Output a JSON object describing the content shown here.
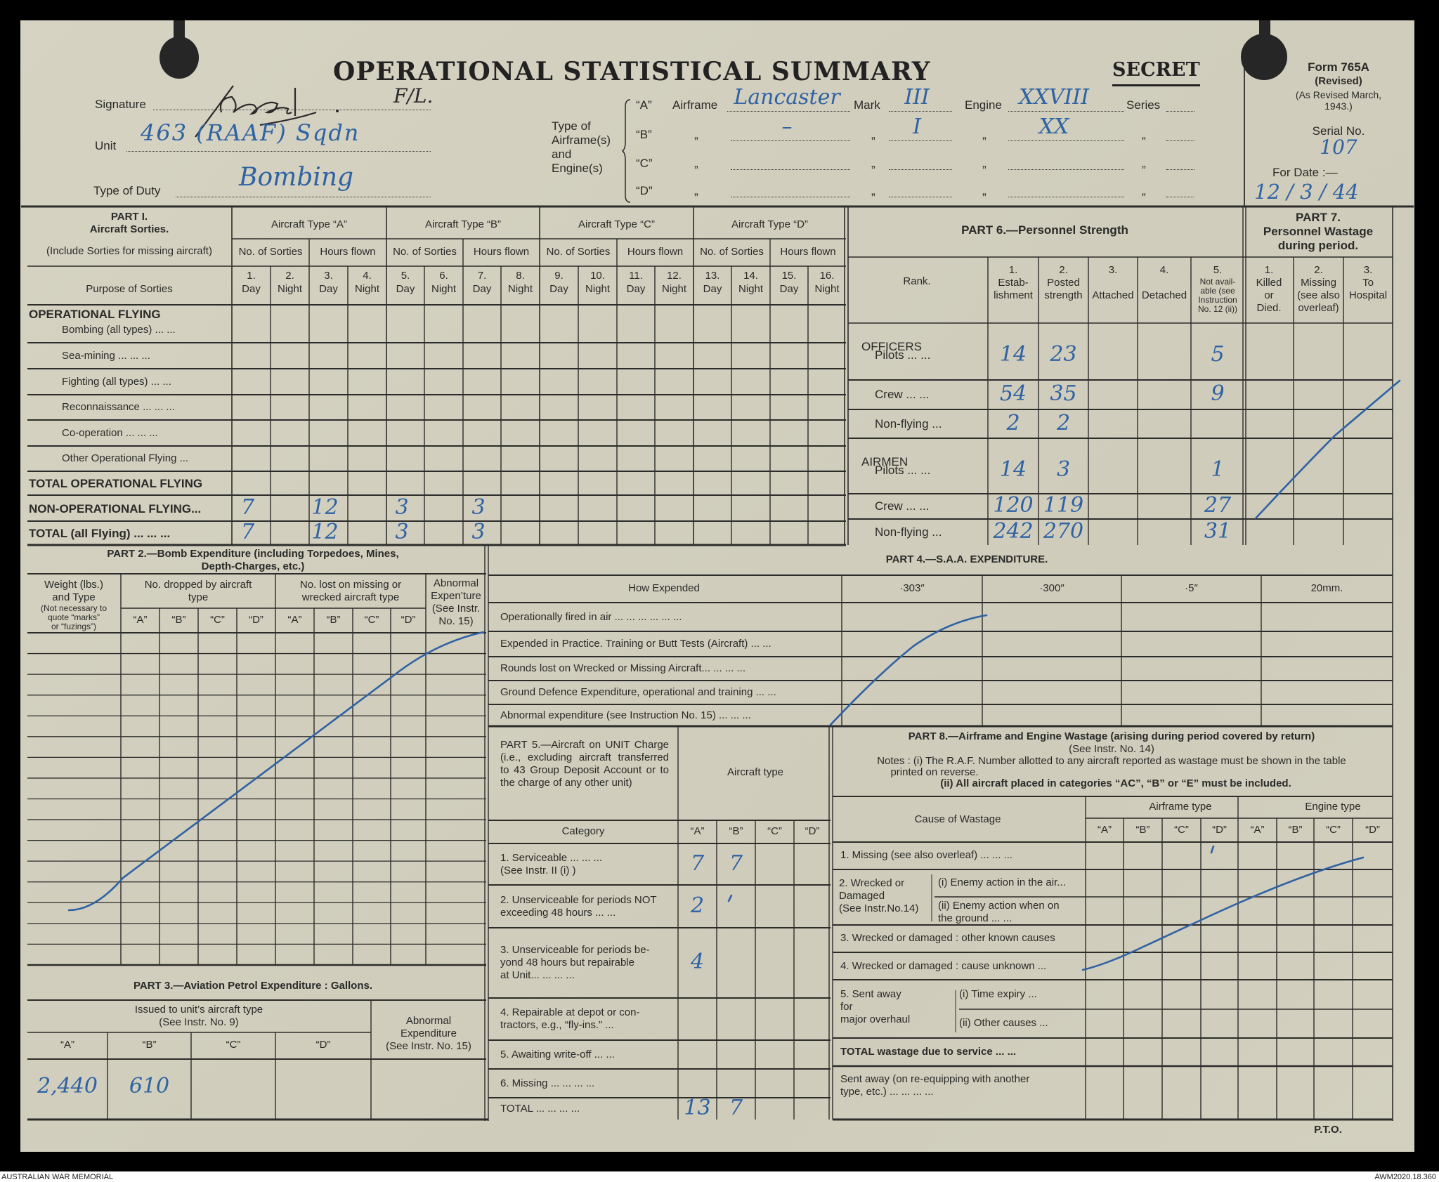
{
  "header": {
    "title": "OPERATIONAL STATISTICAL SUMMARY",
    "classification": "SECRET",
    "form_no": "Form 765A",
    "form_revised": "(Revised)",
    "form_revised_note": "(As Revised March,\n1943.)",
    "serial_label": "Serial No.",
    "serial_value": "107",
    "date_label": "For Date :—",
    "date_value": "12 / 3 / 44",
    "signature_label": "Signature",
    "signature_handwritten": "signature",
    "signature_rank": "F/L.",
    "unit_label": "Unit",
    "unit_value": "463 (RAAF) Sqdn",
    "duty_label": "Type of Duty",
    "duty_value": "Bombing",
    "type_label": "Type of\nAirframe(s)\nand\nEngine(s)",
    "ditto": "„",
    "airframe_label": "Airframe",
    "mark_label": "Mark",
    "engine_label": "Engine",
    "series_label": "Series",
    "airframe_rows": [
      {
        "letter": "“A”",
        "airframe": "Lancaster",
        "mark": "III",
        "engine": "XXVIII",
        "series": ""
      },
      {
        "letter": "“B”",
        "airframe": "–",
        "mark": "I",
        "engine": "XX",
        "series": ""
      },
      {
        "letter": "“C”",
        "airframe": "",
        "mark": "",
        "engine": "",
        "series": ""
      },
      {
        "letter": "“D”",
        "airframe": "",
        "mark": "",
        "engine": "",
        "series": ""
      }
    ]
  },
  "part1": {
    "title": "PART I.\nAircraft Sorties.",
    "note": "(Include Sorties for missing aircraft)",
    "purpose_header": "Purpose of Sorties",
    "groups": [
      "Aircraft Type “A”",
      "Aircraft Type “B”",
      "Aircraft Type “C”",
      "Aircraft Type “D”"
    ],
    "sub_headers": [
      "No. of Sorties",
      "Hours flown"
    ],
    "columns": [
      {
        "num": "1.",
        "label": "Day"
      },
      {
        "num": "2.",
        "label": "Night"
      },
      {
        "num": "3.",
        "label": "Day"
      },
      {
        "num": "4.",
        "label": "Night"
      },
      {
        "num": "5.",
        "label": "Day"
      },
      {
        "num": "6.",
        "label": "Night"
      },
      {
        "num": "7.",
        "label": "Day"
      },
      {
        "num": "8.",
        "label": "Night"
      },
      {
        "num": "9.",
        "label": "Day"
      },
      {
        "num": "10.",
        "label": "Night"
      },
      {
        "num": "11.",
        "label": "Day"
      },
      {
        "num": "12.",
        "label": "Night"
      },
      {
        "num": "13.",
        "label": "Day"
      },
      {
        "num": "14.",
        "label": "Night"
      },
      {
        "num": "15.",
        "label": "Day"
      },
      {
        "num": "16.",
        "label": "Night"
      }
    ],
    "rows": [
      {
        "heading": "OPERATIONAL FLYING",
        "label": "Bombing (all types)    ...    ...",
        "values": []
      },
      {
        "label": "Sea-mining    ...    ...    ...",
        "values": []
      },
      {
        "label": "Fighting (all types)    ...    ...",
        "values": []
      },
      {
        "label": "Reconnaissance ...    ...    ...",
        "values": []
      },
      {
        "label": "Co-operation    ...    ...    ...",
        "values": []
      },
      {
        "label": "Other Operational Flying    ...",
        "values": []
      },
      {
        "label": "TOTAL OPERATIONAL FLYING",
        "bold": true,
        "values": []
      },
      {
        "label": "NON-OPERATIONAL FLYING...",
        "bold": true,
        "values": [
          "7",
          "",
          "12",
          "",
          "3",
          "",
          "3",
          "",
          "",
          "",
          "",
          "",
          "",
          "",
          "",
          ""
        ]
      },
      {
        "label": "TOTAL (all Flying) ...    ...    ...",
        "bold": true,
        "values": [
          "7",
          "",
          "12",
          "",
          "3",
          "",
          "3",
          "",
          "",
          "",
          "",
          "",
          "",
          "",
          "",
          ""
        ]
      }
    ]
  },
  "part6": {
    "title": "PART 6.—Personnel Strength",
    "rank_header": "Rank.",
    "columns": [
      "1.\nEstab-\nlishment",
      "2.\nPosted\nstrength",
      "3.\n\nAttached",
      "4.\n\nDetached"
    ],
    "col5_num": "5.",
    "col5_label": "Not avail-\nable (see\nInstruction\nNo. 12 (ii))",
    "rows": [
      {
        "group": "OFFICERS",
        "label": "Pilots    ...    ...",
        "values": [
          "14",
          "23",
          "",
          "",
          "5"
        ]
      },
      {
        "label": "Crew    ...    ...",
        "values": [
          "54",
          "35",
          "",
          "",
          "9"
        ]
      },
      {
        "label": "Non-flying    ...",
        "values": [
          "2",
          "2",
          "",
          "",
          ""
        ]
      },
      {
        "group": "AIRMEN",
        "label": "Pilots    ...    ...",
        "values": [
          "14",
          "3",
          "",
          "",
          "1"
        ]
      },
      {
        "label": "Crew    ...    ...",
        "values": [
          "120",
          "119",
          "",
          "",
          "27"
        ]
      },
      {
        "label": "Non-flying    ...",
        "values": [
          "242",
          "270",
          "",
          "",
          "31"
        ]
      }
    ]
  },
  "part7": {
    "title": "PART 7.\nPersonnel Wastage\nduring period.",
    "columns": [
      "1.\nKilled\nor\nDied.",
      "2.\nMissing\n(see also\noverleaf)",
      "3.\nTo\nHospital"
    ]
  },
  "part2": {
    "title": "PART 2.—Bomb Expenditure (including Torpedoes, Mines,\nDepth-Charges, etc.)",
    "weight_header": "Weight (lbs.)\nand Type",
    "weight_note": "(Not necessary to\nquote “marks”\nor “fuzings”)",
    "dropped_header": "No. dropped by aircraft\ntype",
    "lost_header": "No. lost on missing or\nwrecked aircraft type",
    "abnormal_header": "Abnormal\nExpen’ture\n(See Instr.\nNo. 15)",
    "letters": [
      "“A”",
      "“B”",
      "“C”",
      "“D”"
    ]
  },
  "part3": {
    "title": "PART 3.—Aviation Petrol Expenditure : Gallons.",
    "issued_header": "Issued to unit’s aircraft type\n(See Instr. No. 9)",
    "letters": [
      "“A”",
      "“B”",
      "“C”",
      "“D”"
    ],
    "abnormal_header": "Abnormal\nExpenditure\n(See Instr. No. 15)",
    "values": [
      "2,440",
      "610",
      "",
      ""
    ]
  },
  "part4": {
    "title": "PART 4.—S.A.A. EXPENDITURE.",
    "how_header": "How Expended",
    "calibres": [
      "·303″",
      "·300″",
      "·5″",
      "20mm."
    ],
    "rows": [
      "Operationally fired in air    ...    ...    ...    ...    ...    ...",
      "Expended in Practice. Training or Butt Tests (Aircraft) ...    ...",
      "Rounds lost on Wrecked or Missing Aircraft...    ...    ...    ...",
      "Ground Defence Expenditure, operational and training    ...    ...",
      "Abnormal expenditure (see Instruction No. 15)    ...    ...    ..."
    ]
  },
  "part5": {
    "title": "PART 5.—Aircraft on UNIT Charge (i.e., excluding aircraft transferred to 43 Group Deposit Account or to the charge of any other unit)",
    "aircraft_type": "Aircraft type",
    "category_header": "Category",
    "letters": [
      "“A”",
      "“B”",
      "“C”",
      "“D”"
    ],
    "rows": [
      {
        "label": "1. Serviceable    ...    ...    ...\n      (See Instr. II (i) )",
        "values": [
          "7",
          "7",
          "",
          ""
        ]
      },
      {
        "label": "2. Unserviceable for periods NOT\n    exceeding 48 hours    ...    ...",
        "values": [
          "2",
          "",
          "",
          ""
        ]
      },
      {
        "label": "3. Unserviceable for periods be-\n    yond 48 hours but repairable\n    at Unit...    ...    ...    ...",
        "values": [
          "4",
          "",
          "",
          ""
        ]
      },
      {
        "label": "4. Repairable at depot or con-\n    tractors, e.g., “fly-ins.”    ...",
        "values": [
          "",
          "",
          "",
          ""
        ]
      },
      {
        "label": "5. Awaiting write-off    ...    ...",
        "values": [
          "",
          "",
          "",
          ""
        ]
      },
      {
        "label": "6. Missing ...    ...    ...    ...",
        "values": [
          "",
          "",
          "",
          ""
        ]
      },
      {
        "label": "TOTAL    ...    ...    ...    ...",
        "values": [
          "13",
          "7",
          "",
          ""
        ]
      }
    ]
  },
  "part8": {
    "title": "PART 8.—Airframe and Engine Wastage (arising during period covered by return)",
    "instr": "(See Instr. No. 14)",
    "note1": "Notes : (i) The R.A.F. Number allotted to any aircraft reported as wastage must be shown in the table",
    "note1b": "printed on reverse.",
    "note2": "(ii) All aircraft placed in categories “AC”, “B” or “E” must be included.",
    "cause_header": "Cause of Wastage",
    "airframe_header": "Airframe type",
    "engine_header": "Engine type",
    "letters": [
      "“A”",
      "“B”",
      "“C”",
      "“D”",
      "“A”",
      "“B”",
      "“C”",
      "“D”"
    ],
    "row1": "1. Missing (see also overleaf) ...    ...    ...",
    "row2_label": "2. Wrecked or\n     Damaged\n(See Instr.No.14)",
    "row2_i": "(i) Enemy action in the air...",
    "row2_ii": "(ii) Enemy action when on\n     the ground    ...    ...",
    "row3": "3. Wrecked or damaged : other known causes",
    "row4": "4. Wrecked or damaged : cause unknown ...",
    "row5_label": "5. Sent away\n       for\n   major overhaul",
    "row5_i": "(i) Time expiry    ...",
    "row5_ii": "(ii) Other causes    ...",
    "total": "TOTAL wastage due to service ...    ...",
    "sent_away": "Sent away (on re-equipping with another\n        type, etc.)    ...    ...    ...    ..."
  },
  "footer": {
    "pto": "P.T.O.",
    "archive_left": "AUSTRALIAN WAR MEMORIAL",
    "archive_right": "AWM2020.18.360"
  },
  "colors": {
    "paper": "#d3d0bf",
    "ink_blue": "#2f62a3",
    "print": "#2a2a28"
  }
}
